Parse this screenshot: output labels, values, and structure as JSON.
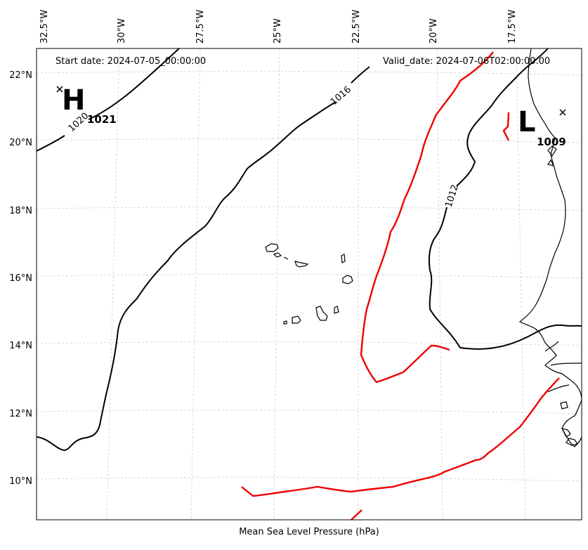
{
  "map": {
    "start_date": "Start date: 2024-07-05_00:00:00",
    "valid_date": "Valid_date: 2024-07-06T02:00:00.00",
    "caption": "Mean Sea Level Pressure (hPa)",
    "lon_ticks": [
      "32.5°W",
      "30°W",
      "27.5°W",
      "25°W",
      "22.5°W",
      "20°W",
      "17.5°W"
    ],
    "lat_ticks": [
      "22°N",
      "20°N",
      "18°N",
      "16°N",
      "14°N",
      "12°N",
      "10°N"
    ],
    "contour_labels": [
      "1020",
      "1016",
      "1012"
    ],
    "high": {
      "letter": "H",
      "value": "1021"
    },
    "low": {
      "letter": "L",
      "value": "1009"
    },
    "colors": {
      "isobar": "#000000",
      "front": "#ee0000",
      "grid": "#cccccc"
    }
  }
}
